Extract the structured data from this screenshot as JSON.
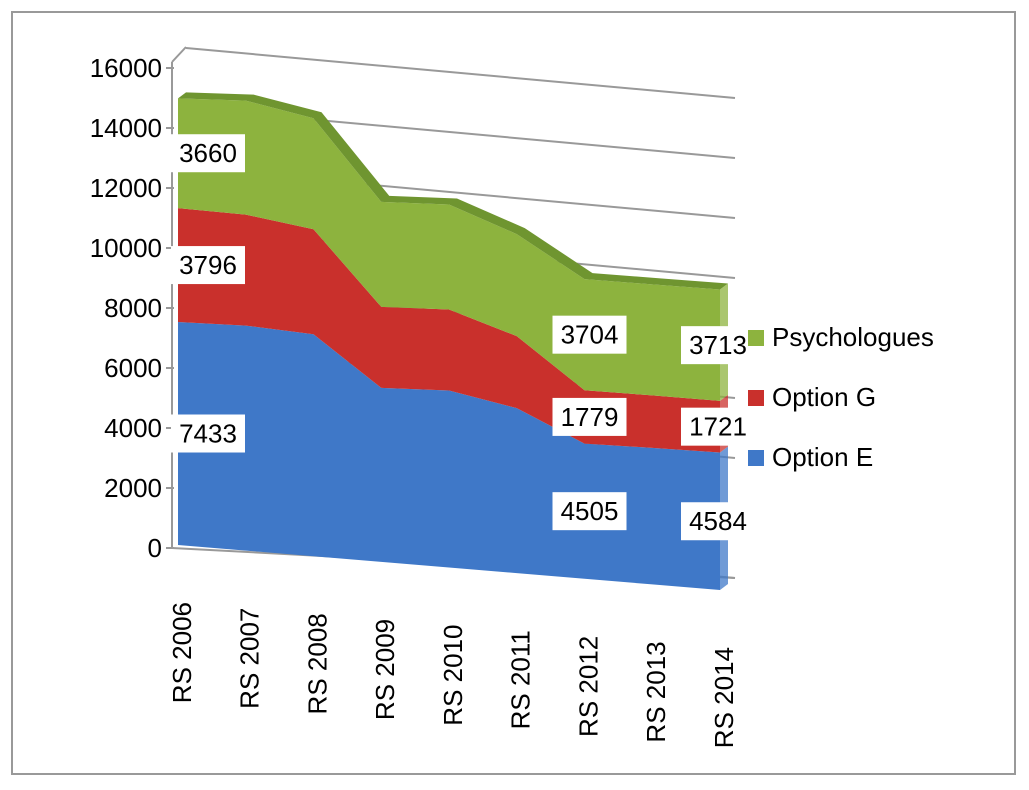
{
  "chart_data": {
    "type": "area",
    "stacked": true,
    "categories": [
      "RS 2006",
      "RS 2007",
      "RS 2008",
      "RS 2009",
      "RS 2010",
      "RS 2011",
      "RS 2012",
      "RS 2013",
      "RS 2014"
    ],
    "series": [
      {
        "name": "Option E",
        "color": "#3f78c8",
        "values": [
          7433,
          7500,
          7400,
          5800,
          5900,
          5500,
          4505,
          4550,
          4584
        ]
      },
      {
        "name": "Option G",
        "color": "#c9302c",
        "values": [
          3796,
          3700,
          3500,
          2700,
          2700,
          2400,
          1779,
          1750,
          1721
        ]
      },
      {
        "name": "Psychologues",
        "color": "#8db33e",
        "values": [
          3660,
          3800,
          3700,
          3500,
          3500,
          3400,
          3704,
          3700,
          3713
        ]
      }
    ],
    "labeled_points": [
      0,
      6,
      8
    ],
    "ylim": [
      0,
      16000
    ],
    "yticks": [
      0,
      2000,
      4000,
      6000,
      8000,
      10000,
      12000,
      14000,
      16000
    ],
    "grid": true,
    "legend": "right"
  }
}
